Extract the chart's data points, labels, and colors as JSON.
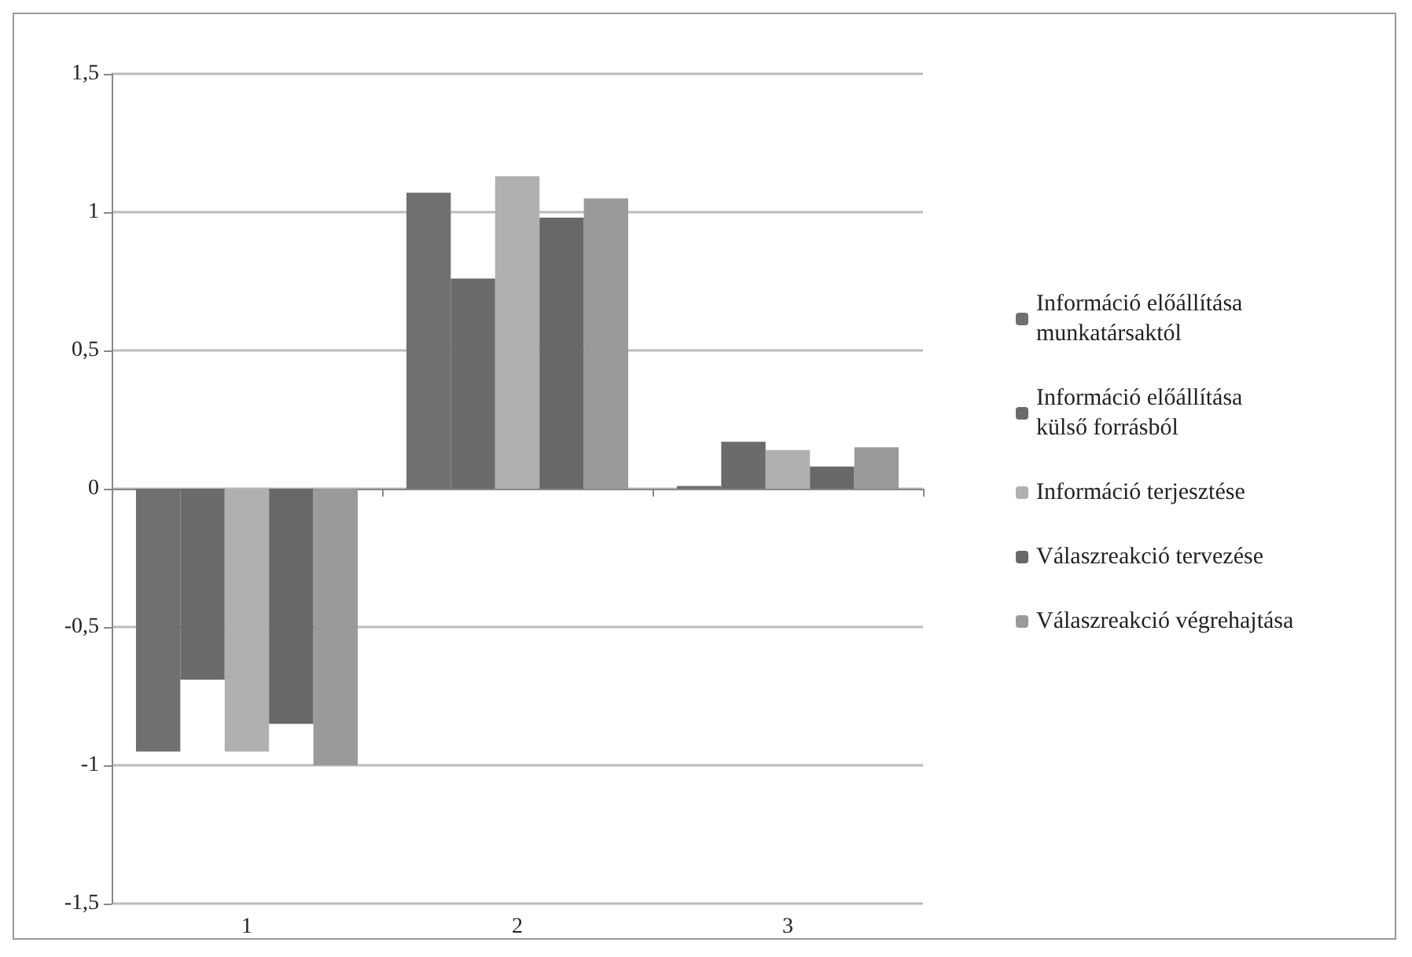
{
  "chart_data": {
    "type": "bar",
    "categories": [
      "1",
      "2",
      "3"
    ],
    "series": [
      {
        "name": "Információ előállítása munkatársaktól",
        "color": "#707070",
        "values": [
          -0.95,
          1.07,
          0.01
        ]
      },
      {
        "name": "Információ előállítása külső forrásból",
        "color": "#6b6b6b",
        "values": [
          -0.69,
          0.76,
          0.17
        ]
      },
      {
        "name": "Információ terjesztése",
        "color": "#b0b0b0",
        "values": [
          -0.95,
          1.13,
          0.14
        ]
      },
      {
        "name": "Válaszreakció tervezése",
        "color": "#686868",
        "values": [
          -0.85,
          0.98,
          0.08
        ]
      },
      {
        "name": "Válaszreakció végrehajtása",
        "color": "#9a9a9a",
        "values": [
          -1.0,
          1.05,
          0.15
        ]
      }
    ],
    "ylim": [
      -1.5,
      1.5
    ],
    "yticks": [
      {
        "value": -1.5,
        "label": "-1,5"
      },
      -1,
      {
        "value": -0.5,
        "label": "-0,5"
      },
      0,
      {
        "value": 0.5,
        "label": "0,5"
      },
      1,
      {
        "value": 1.5,
        "label": "1,5"
      }
    ],
    "grid": "y",
    "legend": "right"
  }
}
